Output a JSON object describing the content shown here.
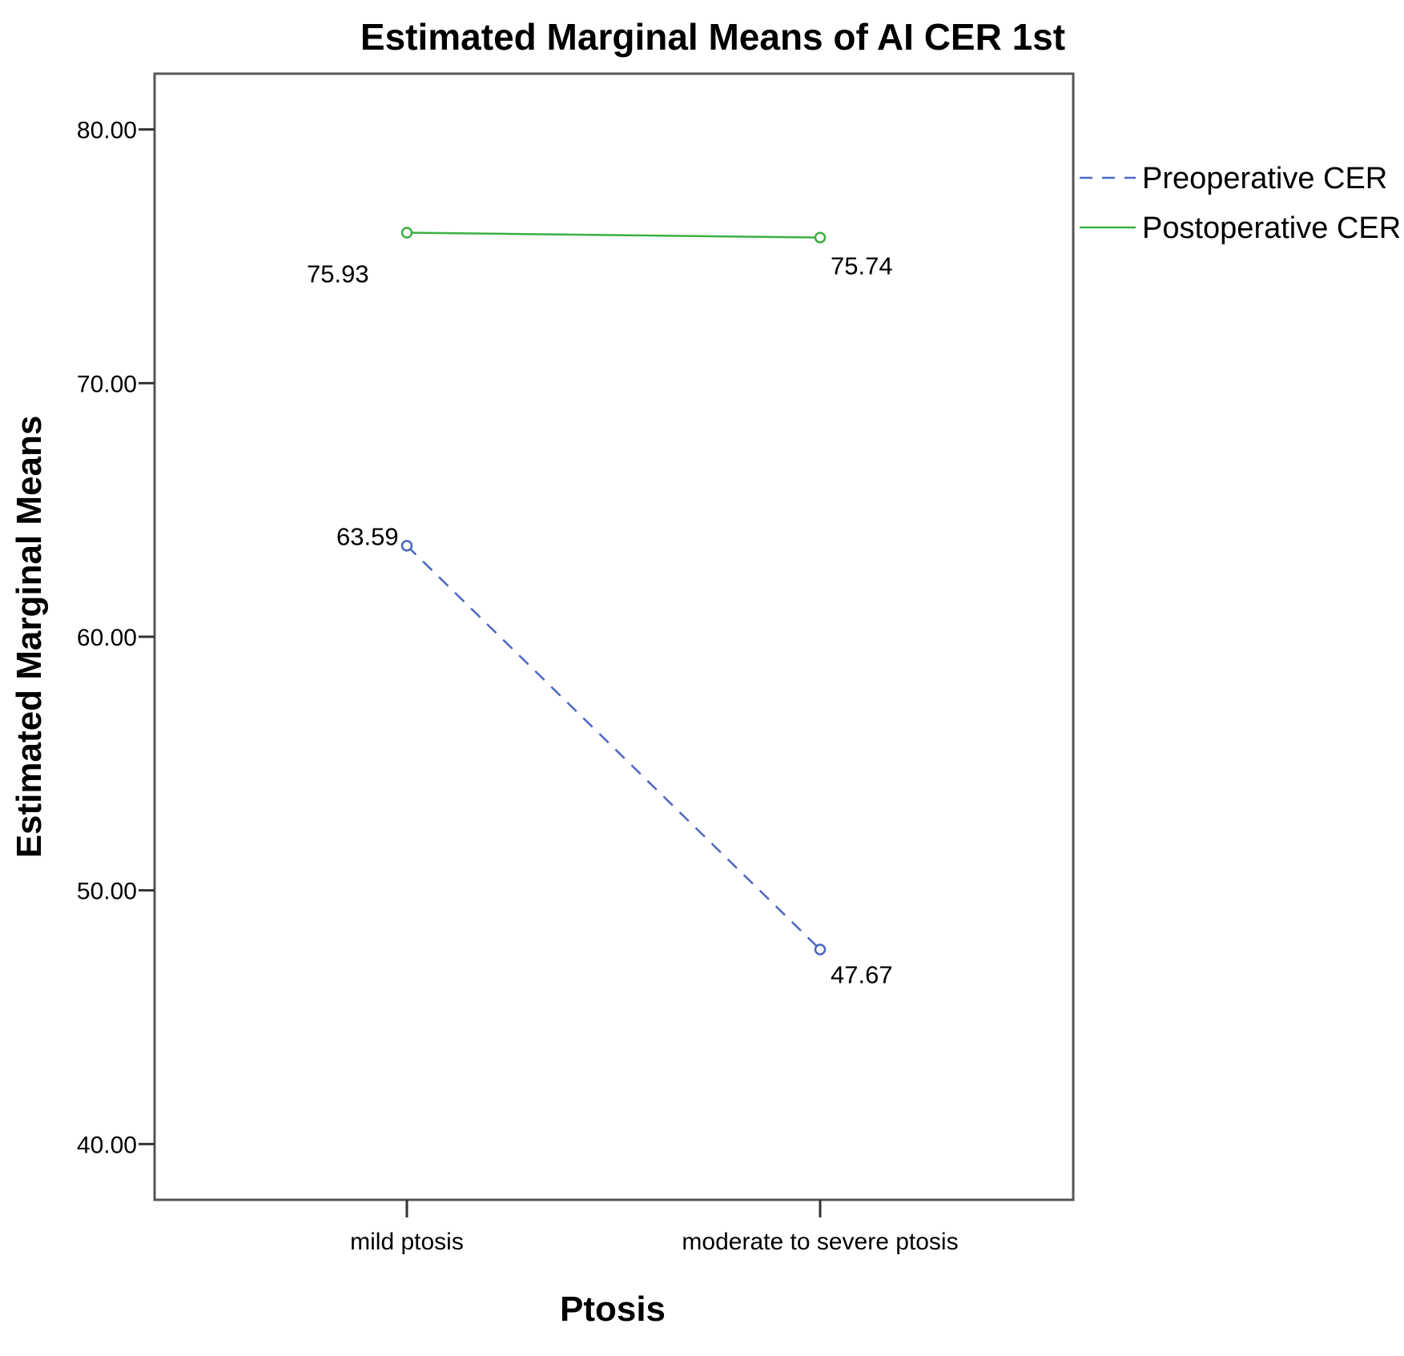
{
  "chart_data": {
    "type": "line",
    "title": "Estimated Marginal Means of AI CER 1st",
    "xlabel": "Ptosis",
    "ylabel": "Estimated Marginal Means",
    "categories": [
      "mild ptosis",
      "moderate to severe ptosis"
    ],
    "ylim": [
      37.8,
      82.2
    ],
    "yticks": [
      40,
      50,
      60,
      70,
      80
    ],
    "ytick_labels": [
      "40.00",
      "50.00",
      "60.00",
      "70.00",
      "80.00"
    ],
    "grid": false,
    "legend_position": "right",
    "series": [
      {
        "name": "Preoperative CER",
        "values": [
          63.59,
          47.67
        ],
        "value_labels": [
          "63.59",
          "47.67"
        ],
        "color": "#4a67c1",
        "line_style": "dashed",
        "marker": "open-circle"
      },
      {
        "name": "Postoperative CER",
        "values": [
          75.93,
          75.74
        ],
        "value_labels": [
          "75.93",
          "75.74"
        ],
        "color": "#3cb043",
        "line_style": "solid",
        "marker": "open-circle"
      }
    ]
  }
}
